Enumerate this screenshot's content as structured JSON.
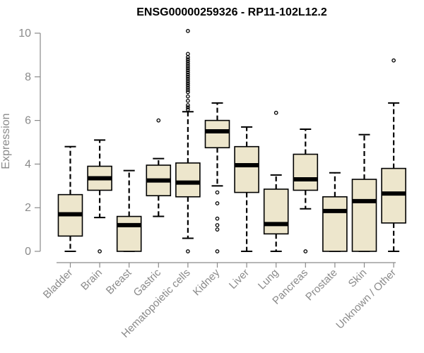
{
  "chart_data": {
    "type": "boxplot",
    "title": "ENSG00000259326 - RP11-102L12.2",
    "xlabel": "",
    "ylabel": "Expression",
    "ylim": [
      0,
      10
    ],
    "yticks": [
      0,
      2,
      4,
      6,
      8,
      10
    ],
    "box_fill": "#ede6cc",
    "axis_color": "#8a8a8a",
    "categories": [
      "Bladder",
      "Brain",
      "Breast",
      "Gastric",
      "Hematopoietic cells",
      "Kidney",
      "Liver",
      "Lung",
      "Pancreas",
      "Prostate",
      "Skin",
      "Unknown / Other"
    ],
    "boxes": [
      {
        "name": "Bladder",
        "min": 0.0,
        "q1": 0.7,
        "median": 1.7,
        "q3": 2.6,
        "max": 4.8,
        "outliers": []
      },
      {
        "name": "Brain",
        "min": 1.55,
        "q1": 2.8,
        "median": 3.35,
        "q3": 3.9,
        "max": 5.1,
        "outliers": [
          0.0
        ]
      },
      {
        "name": "Breast",
        "min": 0.0,
        "q1": 0.0,
        "median": 1.2,
        "q3": 1.6,
        "max": 3.7,
        "outliers": []
      },
      {
        "name": "Gastric",
        "min": 1.6,
        "q1": 2.55,
        "median": 3.25,
        "q3": 3.95,
        "max": 4.25,
        "outliers": [
          6.0
        ]
      },
      {
        "name": "Hematopoietic cells",
        "min": 0.6,
        "q1": 2.5,
        "median": 3.15,
        "q3": 4.05,
        "max": 6.4,
        "outliers": [
          0.0,
          6.5,
          6.6,
          6.7,
          6.9,
          7.1,
          7.3,
          7.4,
          7.5,
          7.6,
          7.7,
          7.8,
          7.9,
          8.0,
          8.1,
          8.2,
          8.3,
          8.4,
          8.5,
          8.6,
          8.7,
          8.8,
          8.9,
          9.05,
          10.1
        ]
      },
      {
        "name": "Kidney",
        "min": 3.0,
        "q1": 4.75,
        "median": 5.5,
        "q3": 6.0,
        "max": 6.8,
        "outliers": [
          0.0,
          1.0,
          1.2,
          1.5,
          2.2,
          2.7
        ]
      },
      {
        "name": "Liver",
        "min": 0.0,
        "q1": 2.7,
        "median": 3.95,
        "q3": 4.8,
        "max": 5.7,
        "outliers": []
      },
      {
        "name": "Lung",
        "min": 0.0,
        "q1": 0.8,
        "median": 1.25,
        "q3": 2.85,
        "max": 3.5,
        "outliers": [
          6.35
        ]
      },
      {
        "name": "Pancreas",
        "min": 1.95,
        "q1": 2.8,
        "median": 3.3,
        "q3": 4.45,
        "max": 5.6,
        "outliers": [
          0.0
        ]
      },
      {
        "name": "Prostate",
        "min": 0.0,
        "q1": 0.0,
        "median": 1.85,
        "q3": 2.5,
        "max": 3.6,
        "outliers": []
      },
      {
        "name": "Skin",
        "min": 0.0,
        "q1": 0.0,
        "median": 2.3,
        "q3": 3.3,
        "max": 5.35,
        "outliers": []
      },
      {
        "name": "Unknown / Other",
        "min": 0.0,
        "q1": 1.3,
        "median": 2.65,
        "q3": 3.8,
        "max": 6.8,
        "outliers": [
          8.75
        ]
      }
    ]
  }
}
